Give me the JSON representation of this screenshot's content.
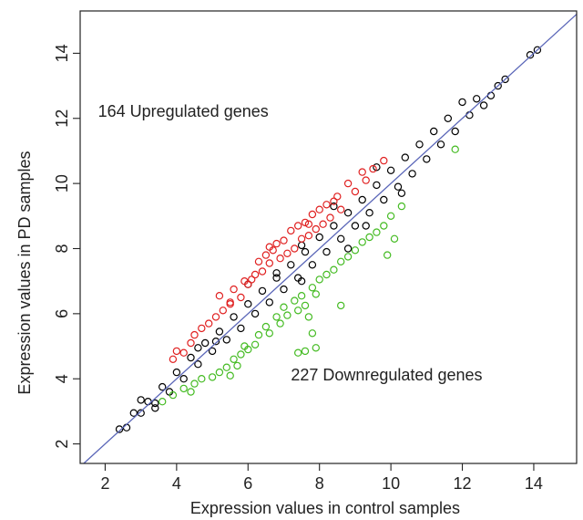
{
  "chart_data": {
    "type": "scatter",
    "title": "",
    "xlabel": "Expression values in control samples",
    "ylabel": "Expression values in PD samples",
    "xlim": [
      1.3,
      15.2
    ],
    "ylim": [
      1.4,
      15.3
    ],
    "xticks": [
      2,
      4,
      6,
      8,
      10,
      12,
      14
    ],
    "yticks": [
      2,
      4,
      6,
      8,
      10,
      12,
      14
    ],
    "grid": false,
    "reference_line": {
      "slope": 1,
      "intercept": 0,
      "color": "#5a66b8"
    },
    "annotations": [
      {
        "text": "164 Upregulated genes",
        "x": 1.8,
        "y": 12.05
      },
      {
        "text": "227 Downregulated genes",
        "x": 7.2,
        "y": 3.95
      }
    ],
    "series": [
      {
        "color": "#000000",
        "points": [
          [
            2.4,
            2.45
          ],
          [
            2.6,
            2.5
          ],
          [
            2.8,
            2.95
          ],
          [
            3.0,
            2.95
          ],
          [
            3.2,
            3.3
          ],
          [
            3.4,
            3.25
          ],
          [
            3.6,
            3.75
          ],
          [
            3.8,
            3.6
          ],
          [
            4.0,
            4.2
          ],
          [
            4.2,
            4.0
          ],
          [
            4.4,
            4.65
          ],
          [
            4.6,
            4.45
          ],
          [
            4.8,
            5.1
          ],
          [
            5.0,
            4.85
          ],
          [
            5.2,
            5.45
          ],
          [
            5.4,
            5.2
          ],
          [
            5.6,
            5.9
          ],
          [
            5.8,
            5.55
          ],
          [
            6.0,
            6.3
          ],
          [
            6.2,
            6.0
          ],
          [
            6.4,
            6.7
          ],
          [
            6.6,
            6.35
          ],
          [
            6.8,
            7.1
          ],
          [
            7.0,
            6.75
          ],
          [
            7.2,
            7.5
          ],
          [
            7.4,
            7.1
          ],
          [
            7.6,
            7.9
          ],
          [
            7.8,
            7.5
          ],
          [
            8.0,
            8.35
          ],
          [
            8.2,
            7.9
          ],
          [
            8.4,
            8.7
          ],
          [
            8.6,
            8.3
          ],
          [
            8.8,
            9.1
          ],
          [
            9.0,
            8.7
          ],
          [
            9.2,
            9.5
          ],
          [
            9.4,
            9.1
          ],
          [
            9.6,
            9.95
          ],
          [
            9.8,
            9.5
          ],
          [
            10.0,
            10.4
          ],
          [
            10.2,
            9.9
          ],
          [
            10.4,
            10.8
          ],
          [
            10.6,
            10.3
          ],
          [
            10.8,
            11.2
          ],
          [
            11.0,
            10.75
          ],
          [
            11.2,
            11.6
          ],
          [
            11.4,
            11.2
          ],
          [
            11.6,
            12.0
          ],
          [
            11.8,
            11.6
          ],
          [
            12.0,
            12.5
          ],
          [
            12.2,
            12.1
          ],
          [
            12.4,
            12.6
          ],
          [
            12.6,
            12.4
          ],
          [
            12.8,
            12.7
          ],
          [
            13.0,
            13.0
          ],
          [
            13.2,
            13.2
          ],
          [
            13.9,
            13.95
          ],
          [
            14.1,
            14.1
          ],
          [
            4.6,
            4.95
          ],
          [
            6.0,
            6.9
          ],
          [
            7.5,
            8.1
          ],
          [
            8.4,
            9.3
          ],
          [
            9.6,
            10.5
          ],
          [
            7.5,
            7.0
          ],
          [
            8.8,
            8.0
          ],
          [
            9.3,
            8.7
          ],
          [
            10.3,
            9.7
          ],
          [
            5.1,
            5.15
          ],
          [
            6.8,
            7.25
          ],
          [
            3.0,
            3.35
          ],
          [
            3.4,
            3.1
          ]
        ]
      },
      {
        "color": "#e02020",
        "points": [
          [
            3.9,
            4.6
          ],
          [
            4.2,
            4.8
          ],
          [
            4.5,
            5.35
          ],
          [
            4.7,
            5.55
          ],
          [
            4.9,
            5.7
          ],
          [
            5.1,
            5.9
          ],
          [
            5.3,
            6.1
          ],
          [
            5.5,
            6.3
          ],
          [
            5.6,
            6.75
          ],
          [
            5.8,
            6.5
          ],
          [
            5.9,
            7.0
          ],
          [
            6.0,
            6.9
          ],
          [
            6.2,
            7.2
          ],
          [
            6.3,
            7.6
          ],
          [
            6.4,
            7.3
          ],
          [
            6.5,
            7.8
          ],
          [
            6.6,
            7.55
          ],
          [
            6.7,
            7.95
          ],
          [
            6.8,
            8.15
          ],
          [
            6.9,
            7.7
          ],
          [
            7.0,
            8.25
          ],
          [
            7.1,
            7.85
          ],
          [
            7.2,
            8.55
          ],
          [
            7.3,
            8.0
          ],
          [
            7.4,
            8.7
          ],
          [
            7.5,
            8.3
          ],
          [
            7.6,
            8.8
          ],
          [
            7.7,
            8.4
          ],
          [
            7.8,
            9.05
          ],
          [
            7.9,
            8.6
          ],
          [
            8.0,
            9.2
          ],
          [
            8.1,
            8.75
          ],
          [
            8.2,
            9.35
          ],
          [
            8.3,
            8.95
          ],
          [
            8.5,
            9.6
          ],
          [
            8.6,
            9.2
          ],
          [
            8.8,
            10.0
          ],
          [
            9.0,
            9.75
          ],
          [
            9.2,
            10.35
          ],
          [
            9.3,
            10.1
          ],
          [
            9.5,
            10.45
          ],
          [
            9.8,
            10.7
          ],
          [
            5.2,
            6.55
          ],
          [
            5.5,
            6.35
          ],
          [
            6.1,
            7.05
          ],
          [
            4.4,
            5.1
          ],
          [
            4.0,
            4.85
          ],
          [
            6.6,
            8.05
          ],
          [
            7.7,
            8.75
          ],
          [
            8.4,
            9.45
          ]
        ]
      },
      {
        "color": "#44bb22",
        "points": [
          [
            3.6,
            3.3
          ],
          [
            3.9,
            3.5
          ],
          [
            4.2,
            3.7
          ],
          [
            4.4,
            3.6
          ],
          [
            4.5,
            3.85
          ],
          [
            4.7,
            4.0
          ],
          [
            5.0,
            4.05
          ],
          [
            5.2,
            4.2
          ],
          [
            5.4,
            4.35
          ],
          [
            5.5,
            4.1
          ],
          [
            5.6,
            4.6
          ],
          [
            5.7,
            4.4
          ],
          [
            5.8,
            4.75
          ],
          [
            5.9,
            5.0
          ],
          [
            6.0,
            4.9
          ],
          [
            6.2,
            5.05
          ],
          [
            6.3,
            5.35
          ],
          [
            6.5,
            5.6
          ],
          [
            6.6,
            5.4
          ],
          [
            6.8,
            5.9
          ],
          [
            6.9,
            5.7
          ],
          [
            7.0,
            6.2
          ],
          [
            7.1,
            5.95
          ],
          [
            7.3,
            6.4
          ],
          [
            7.4,
            6.1
          ],
          [
            7.5,
            6.55
          ],
          [
            7.6,
            6.25
          ],
          [
            7.8,
            6.8
          ],
          [
            7.9,
            6.6
          ],
          [
            8.0,
            7.05
          ],
          [
            8.2,
            7.2
          ],
          [
            8.4,
            7.35
          ],
          [
            8.6,
            7.6
          ],
          [
            8.8,
            7.75
          ],
          [
            9.0,
            7.95
          ],
          [
            9.2,
            8.2
          ],
          [
            9.4,
            8.35
          ],
          [
            9.6,
            8.5
          ],
          [
            9.8,
            8.7
          ],
          [
            10.0,
            9.0
          ],
          [
            10.3,
            9.3
          ],
          [
            11.8,
            11.05
          ],
          [
            9.9,
            7.8
          ],
          [
            8.6,
            6.25
          ],
          [
            7.9,
            4.95
          ],
          [
            7.6,
            4.85
          ],
          [
            7.4,
            4.8
          ],
          [
            7.8,
            5.4
          ],
          [
            7.7,
            5.9
          ],
          [
            10.1,
            8.3
          ]
        ]
      }
    ]
  }
}
